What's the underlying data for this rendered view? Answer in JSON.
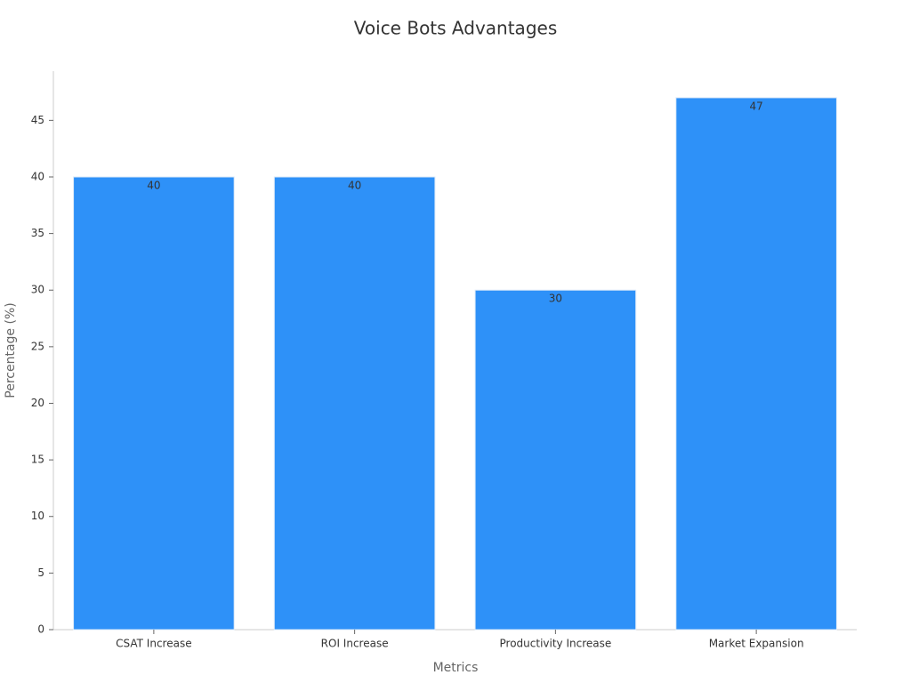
{
  "chart_data": {
    "type": "bar",
    "title": "Voice Bots Advantages",
    "x_label": "Metrics",
    "y_label": "Percentage (%)",
    "categories": [
      "CSAT Increase",
      "ROI Increase",
      "Productivity Increase",
      "Market Expansion"
    ],
    "values": [
      40,
      40,
      30,
      47
    ],
    "color": "#2e91f8",
    "ylim": [
      0,
      49.35
    ],
    "yticks": [
      0,
      5,
      10,
      15,
      20,
      25,
      30,
      35,
      40,
      45
    ],
    "grid": false
  }
}
